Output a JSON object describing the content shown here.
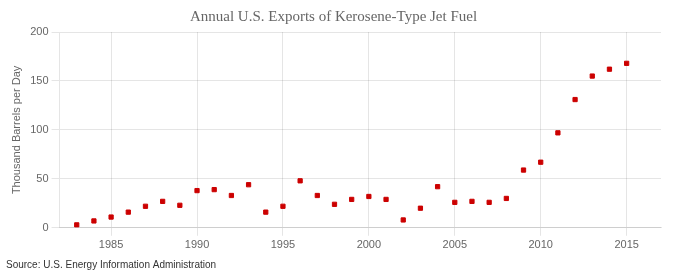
{
  "chart_data": {
    "type": "scatter",
    "title": "Annual U.S. Exports of Kerosene-Type Jet Fuel",
    "ylabel": "Thousand Barrels per Day",
    "source": "Source: U.S. Energy Information Administration",
    "x": [
      1983,
      1984,
      1985,
      1986,
      1987,
      1988,
      1989,
      1990,
      1991,
      1992,
      1993,
      1994,
      1995,
      1996,
      1997,
      1998,
      1999,
      2000,
      2001,
      2002,
      2003,
      2004,
      2005,
      2006,
      2007,
      2008,
      2009,
      2010,
      2011,
      2012,
      2013,
      2014,
      2015
    ],
    "values": [
      3,
      7,
      11,
      16,
      22,
      27,
      23,
      38,
      39,
      33,
      44,
      16,
      22,
      48,
      33,
      24,
      29,
      32,
      29,
      8,
      20,
      42,
      26,
      27,
      26,
      30,
      59,
      67,
      97,
      131,
      155,
      162,
      168
    ],
    "color": "#cc0000",
    "marker": "square",
    "xlim": [
      1982,
      2017
    ],
    "xticks": [
      1985,
      1990,
      1995,
      2000,
      2005,
      2010,
      2015
    ],
    "ylim": [
      0,
      200
    ],
    "yticks": [
      0,
      50,
      100,
      150,
      200
    ],
    "grid": true
  }
}
